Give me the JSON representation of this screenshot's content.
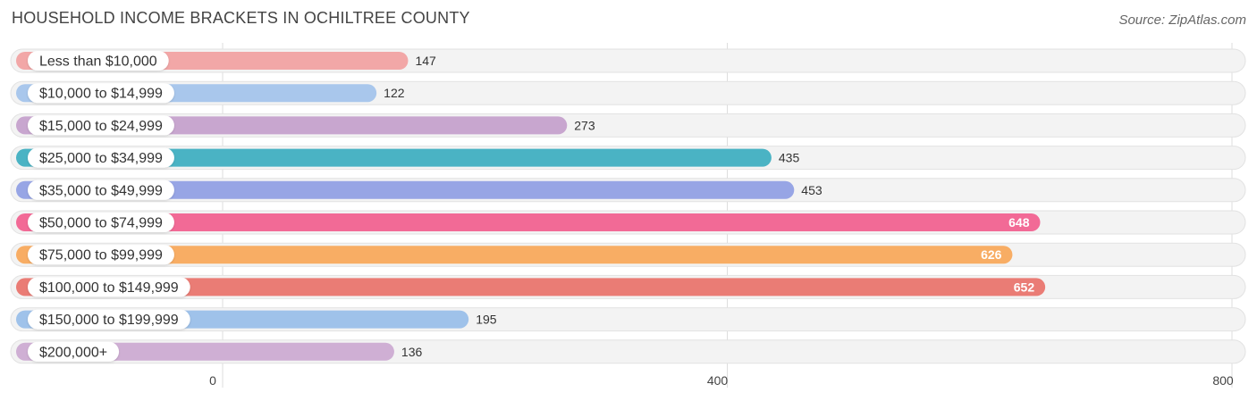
{
  "header": {
    "title": "HOUSEHOLD INCOME BRACKETS IN OCHILTREE COUNTY",
    "source": "Source: ZipAtlas.com"
  },
  "chart_data": {
    "type": "bar",
    "orientation": "horizontal",
    "categories": [
      "Less than $10,000",
      "$10,000 to $14,999",
      "$15,000 to $24,999",
      "$25,000 to $34,999",
      "$35,000 to $49,999",
      "$50,000 to $74,999",
      "$75,000 to $99,999",
      "$100,000 to $149,999",
      "$150,000 to $199,999",
      "$200,000+"
    ],
    "values": [
      147,
      122,
      273,
      435,
      453,
      648,
      626,
      652,
      195,
      136
    ],
    "value_labels": [
      "147",
      "122",
      "273",
      "435",
      "453",
      "648",
      "626",
      "652",
      "195",
      "136"
    ],
    "colors": [
      "#f2a7a7",
      "#a9c7ec",
      "#c8a6cf",
      "#4ab3c4",
      "#97a5e5",
      "#f26a96",
      "#f8ad64",
      "#ea7c75",
      "#9fc2ea",
      "#cfafd4"
    ],
    "xlim": [
      0,
      800
    ],
    "xticks": [
      0,
      400,
      800
    ],
    "xtick_labels": [
      "0",
      "400",
      "800"
    ],
    "grid": true,
    "title": "HOUSEHOLD INCOME BRACKETS IN OCHILTREE COUNTY",
    "xlabel": "",
    "ylabel": ""
  }
}
